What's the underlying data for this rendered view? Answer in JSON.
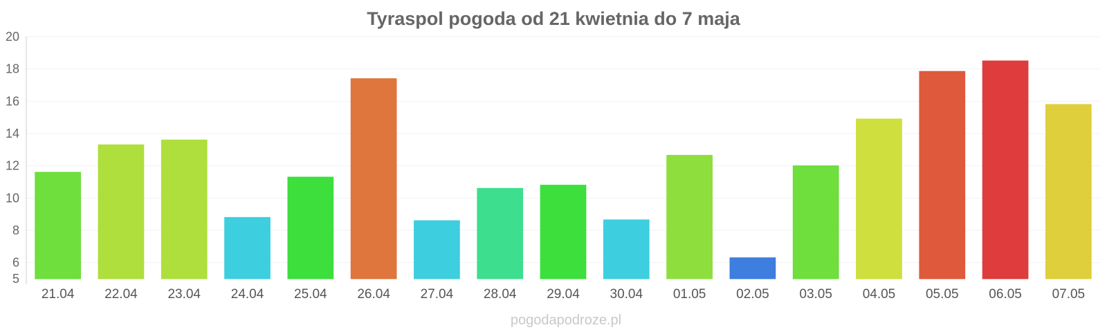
{
  "chart_data": {
    "type": "bar",
    "title": "Tyraspol pogoda od 21 kwietnia do 7 maja",
    "xlabel": "",
    "ylabel": "",
    "ylim": [
      5,
      20
    ],
    "yticks": [
      5,
      6,
      8,
      10,
      12,
      14,
      16,
      18,
      20
    ],
    "grid": true,
    "categories": [
      "21.04",
      "22.04",
      "23.04",
      "24.04",
      "25.04",
      "26.04",
      "27.04",
      "28.04",
      "29.04",
      "30.04",
      "01.05",
      "02.05",
      "03.05",
      "04.05",
      "05.05",
      "06.05",
      "07.05"
    ],
    "values": [
      11.6,
      13.3,
      13.6,
      8.8,
      11.3,
      17.4,
      8.6,
      10.6,
      10.8,
      8.65,
      12.65,
      6.3,
      12.0,
      14.9,
      17.85,
      18.5,
      15.8
    ],
    "colors": [
      "#66dd33",
      "#aadd33",
      "#aadd33",
      "#33ccdd",
      "#33dd33",
      "#dd6f33",
      "#33ccdd",
      "#33dd88",
      "#33dd33",
      "#33ccdd",
      "#88dd33",
      "#3377dd",
      "#66dd33",
      "#ccdd33",
      "#dd5033",
      "#dd3333",
      "#ddcc33"
    ]
  },
  "credit": "pogodapodroze.pl"
}
